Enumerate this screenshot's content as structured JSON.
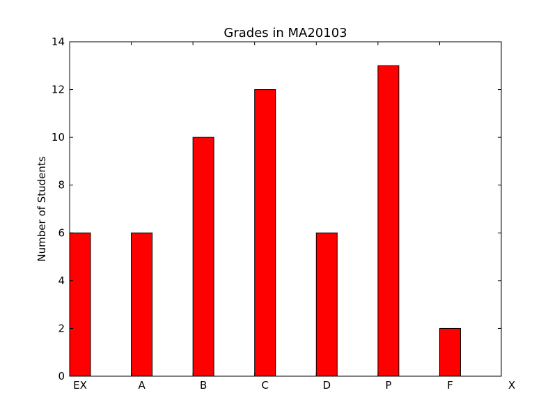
{
  "chart_data": {
    "type": "bar",
    "title": "Grades in MA20103",
    "xlabel": "",
    "ylabel": "Number of Students",
    "categories": [
      "EX",
      "A",
      "B",
      "C",
      "D",
      "P",
      "F",
      "X"
    ],
    "values": [
      6,
      6,
      10,
      12,
      6,
      13,
      2,
      0
    ],
    "ylim": [
      0,
      14
    ],
    "yticks": [
      0,
      2,
      4,
      6,
      8,
      10,
      12,
      14
    ],
    "grid": false,
    "bar_color": "#ff0000",
    "edge_color": "#000000"
  }
}
